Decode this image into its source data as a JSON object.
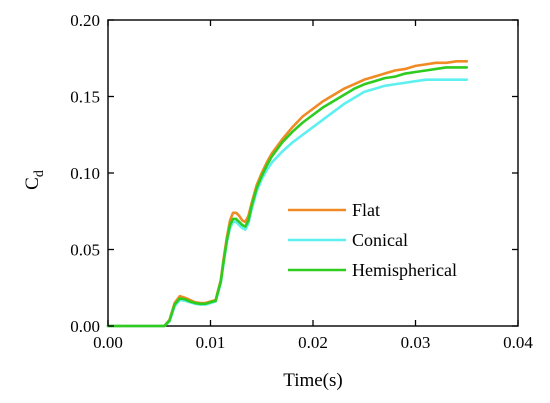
{
  "chart_data": {
    "type": "line",
    "xlabel": "Time(s)",
    "ylabel_main": "C",
    "ylabel_sub": "d",
    "xlim": [
      0,
      0.04
    ],
    "ylim": [
      0,
      0.2
    ],
    "x_ticks": [
      0.0,
      0.01,
      0.02,
      0.03,
      0.04
    ],
    "x_tick_labels": [
      "0.00",
      "0.01",
      "0.02",
      "0.03",
      "0.04"
    ],
    "y_ticks": [
      0.0,
      0.05,
      0.1,
      0.15,
      0.2
    ],
    "y_tick_labels": [
      "0.00",
      "0.05",
      "0.10",
      "0.15",
      "0.20"
    ],
    "grid": false,
    "legend_position": "right-middle",
    "series": [
      {
        "name": "Flat",
        "color": "#f08a24",
        "x": [
          0,
          0.0055,
          0.006,
          0.0065,
          0.007,
          0.0075,
          0.008,
          0.0085,
          0.009,
          0.0095,
          0.01,
          0.0105,
          0.011,
          0.0113,
          0.0116,
          0.0119,
          0.0122,
          0.0125,
          0.0128,
          0.0131,
          0.0134,
          0.0137,
          0.014,
          0.0145,
          0.015,
          0.0155,
          0.016,
          0.017,
          0.018,
          0.019,
          0.02,
          0.021,
          0.022,
          0.023,
          0.024,
          0.025,
          0.026,
          0.027,
          0.028,
          0.029,
          0.03,
          0.031,
          0.032,
          0.033,
          0.034,
          0.035
        ],
        "y": [
          0,
          0,
          0.004,
          0.015,
          0.0195,
          0.0185,
          0.017,
          0.0155,
          0.015,
          0.015,
          0.016,
          0.017,
          0.03,
          0.045,
          0.058,
          0.069,
          0.074,
          0.074,
          0.072,
          0.069,
          0.068,
          0.072,
          0.08,
          0.092,
          0.1,
          0.107,
          0.113,
          0.122,
          0.13,
          0.137,
          0.142,
          0.147,
          0.151,
          0.155,
          0.158,
          0.161,
          0.163,
          0.165,
          0.167,
          0.168,
          0.17,
          0.171,
          0.172,
          0.172,
          0.173,
          0.173
        ]
      },
      {
        "name": "Conical",
        "color": "#5ef0f0",
        "x": [
          0,
          0.0055,
          0.006,
          0.0065,
          0.007,
          0.0075,
          0.008,
          0.0085,
          0.009,
          0.0095,
          0.01,
          0.0105,
          0.011,
          0.0113,
          0.0116,
          0.0119,
          0.0122,
          0.0125,
          0.0128,
          0.0131,
          0.0134,
          0.0137,
          0.014,
          0.0145,
          0.015,
          0.0155,
          0.016,
          0.017,
          0.018,
          0.019,
          0.02,
          0.021,
          0.022,
          0.023,
          0.024,
          0.025,
          0.026,
          0.027,
          0.028,
          0.029,
          0.03,
          0.031,
          0.032,
          0.033,
          0.034,
          0.035
        ],
        "y": [
          0,
          0,
          0.003,
          0.013,
          0.017,
          0.0165,
          0.0155,
          0.0145,
          0.014,
          0.014,
          0.015,
          0.016,
          0.028,
          0.042,
          0.055,
          0.064,
          0.068,
          0.068,
          0.066,
          0.064,
          0.063,
          0.067,
          0.076,
          0.088,
          0.096,
          0.102,
          0.107,
          0.114,
          0.12,
          0.125,
          0.13,
          0.135,
          0.14,
          0.145,
          0.149,
          0.153,
          0.155,
          0.157,
          0.158,
          0.159,
          0.16,
          0.161,
          0.161,
          0.161,
          0.161,
          0.161
        ]
      },
      {
        "name": "Hemispherical",
        "color": "#2ecc1e",
        "x": [
          0,
          0.0055,
          0.006,
          0.0065,
          0.007,
          0.0075,
          0.008,
          0.0085,
          0.009,
          0.0095,
          0.01,
          0.0105,
          0.011,
          0.0113,
          0.0116,
          0.0119,
          0.0122,
          0.0125,
          0.0128,
          0.0131,
          0.0134,
          0.0137,
          0.014,
          0.0145,
          0.015,
          0.0155,
          0.016,
          0.017,
          0.018,
          0.019,
          0.02,
          0.021,
          0.022,
          0.023,
          0.024,
          0.025,
          0.026,
          0.027,
          0.028,
          0.029,
          0.03,
          0.031,
          0.032,
          0.033,
          0.034,
          0.035
        ],
        "y": [
          0,
          0,
          0.0035,
          0.014,
          0.018,
          0.0175,
          0.016,
          0.015,
          0.0145,
          0.0145,
          0.0155,
          0.0165,
          0.029,
          0.043,
          0.056,
          0.066,
          0.07,
          0.07,
          0.068,
          0.066,
          0.065,
          0.069,
          0.078,
          0.09,
          0.098,
          0.105,
          0.111,
          0.12,
          0.127,
          0.133,
          0.138,
          0.143,
          0.147,
          0.151,
          0.155,
          0.158,
          0.16,
          0.162,
          0.163,
          0.165,
          0.166,
          0.167,
          0.168,
          0.169,
          0.169,
          0.169
        ]
      }
    ]
  }
}
